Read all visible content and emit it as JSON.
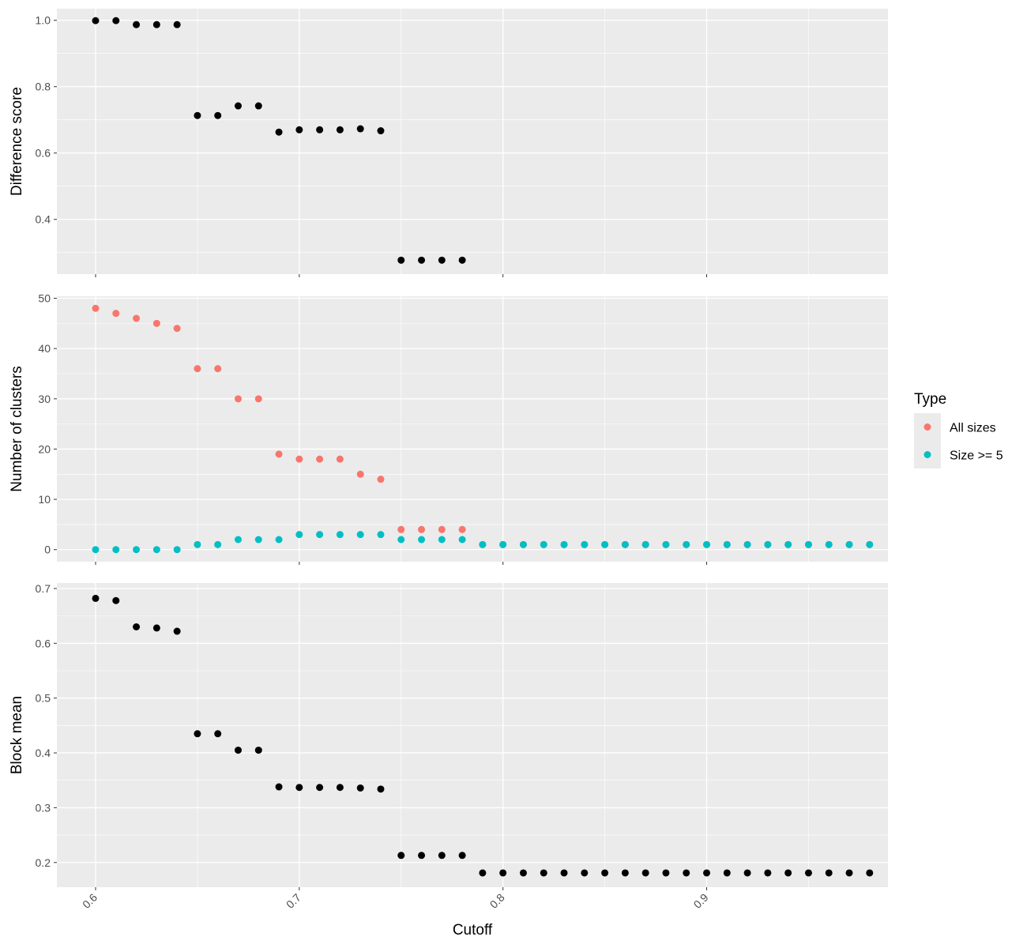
{
  "chart_data": {
    "type": "scatter",
    "xlabel": "Cutoff",
    "xlim": [
      0.581,
      0.989
    ],
    "x_ticks": [
      "0.6",
      "0.7",
      "0.8",
      "0.9"
    ],
    "x_tick_values": [
      0.6,
      0.7,
      0.8,
      0.9
    ],
    "grid": true,
    "legend": {
      "title": "Type",
      "placement": "right",
      "entries": [
        {
          "name": "All sizes",
          "color": "#F8766D"
        },
        {
          "name": "Size >= 5",
          "color": "#00BFC4"
        }
      ]
    },
    "colors": {
      "panel_background": "#EBEBEB",
      "grid_major": "#FFFFFF",
      "point_default": "#000000",
      "tick_label": "#4D4D4D"
    },
    "panels": [
      {
        "ylabel": "Difference score",
        "ylim": [
          0.235,
          1.035
        ],
        "y_ticks": [
          "0.4",
          "0.6",
          "0.8",
          "1.0"
        ],
        "y_tick_values": [
          0.4,
          0.6,
          0.8,
          1.0
        ],
        "series": [
          {
            "x": [
              0.6,
              0.61,
              0.62,
              0.63,
              0.64,
              0.65,
              0.66,
              0.67,
              0.68,
              0.69,
              0.7,
              0.71,
              0.72,
              0.73,
              0.74,
              0.75,
              0.76,
              0.77,
              0.78
            ],
            "values": [
              0.999,
              0.999,
              0.987,
              0.987,
              0.987,
              0.713,
              0.713,
              0.742,
              0.742,
              0.663,
              0.67,
              0.67,
              0.67,
              0.673,
              0.667,
              0.277,
              0.277,
              0.277,
              0.277
            ]
          }
        ]
      },
      {
        "ylabel": "Number of clusters",
        "ylim": [
          -2.4,
          50.4
        ],
        "y_ticks": [
          "0",
          "10",
          "20",
          "30",
          "40",
          "50"
        ],
        "y_tick_values": [
          0,
          10,
          20,
          30,
          40,
          50
        ],
        "series": [
          {
            "name": "All sizes",
            "x": [
              0.6,
              0.61,
              0.62,
              0.63,
              0.64,
              0.65,
              0.66,
              0.67,
              0.68,
              0.69,
              0.7,
              0.71,
              0.72,
              0.73,
              0.74,
              0.75,
              0.76,
              0.77,
              0.78,
              0.79,
              0.8,
              0.81,
              0.82,
              0.83,
              0.84,
              0.85,
              0.86,
              0.87,
              0.88,
              0.89,
              0.9,
              0.91,
              0.92,
              0.93,
              0.94,
              0.95,
              0.96,
              0.97,
              0.98
            ],
            "values": [
              48,
              47,
              46,
              45,
              44,
              36,
              36,
              30,
              30,
              19,
              18,
              18,
              18,
              15,
              14,
              4,
              4,
              4,
              4,
              1,
              1,
              1,
              1,
              1,
              1,
              1,
              1,
              1,
              1,
              1,
              1,
              1,
              1,
              1,
              1,
              1,
              1,
              1,
              1
            ]
          },
          {
            "name": "Size >= 5",
            "x": [
              0.6,
              0.61,
              0.62,
              0.63,
              0.64,
              0.65,
              0.66,
              0.67,
              0.68,
              0.69,
              0.7,
              0.71,
              0.72,
              0.73,
              0.74,
              0.75,
              0.76,
              0.77,
              0.78,
              0.79,
              0.8,
              0.81,
              0.82,
              0.83,
              0.84,
              0.85,
              0.86,
              0.87,
              0.88,
              0.89,
              0.9,
              0.91,
              0.92,
              0.93,
              0.94,
              0.95,
              0.96,
              0.97,
              0.98
            ],
            "values": [
              0,
              0,
              0,
              0,
              0,
              1,
              1,
              2,
              2,
              2,
              3,
              3,
              3,
              3,
              3,
              2,
              2,
              2,
              2,
              1,
              1,
              1,
              1,
              1,
              1,
              1,
              1,
              1,
              1,
              1,
              1,
              1,
              1,
              1,
              1,
              1,
              1,
              1,
              1
            ]
          }
        ]
      },
      {
        "ylabel": "Block mean",
        "ylim": [
          0.155,
          0.71
        ],
        "y_ticks": [
          "0.2",
          "0.3",
          "0.4",
          "0.5",
          "0.6",
          "0.7"
        ],
        "y_tick_values": [
          0.2,
          0.3,
          0.4,
          0.5,
          0.6,
          0.7
        ],
        "series": [
          {
            "x": [
              0.6,
              0.61,
              0.62,
              0.63,
              0.64,
              0.65,
              0.66,
              0.67,
              0.68,
              0.69,
              0.7,
              0.71,
              0.72,
              0.73,
              0.74,
              0.75,
              0.76,
              0.77,
              0.78,
              0.79,
              0.8,
              0.81,
              0.82,
              0.83,
              0.84,
              0.85,
              0.86,
              0.87,
              0.88,
              0.89,
              0.9,
              0.91,
              0.92,
              0.93,
              0.94,
              0.95,
              0.96,
              0.97,
              0.98
            ],
            "values": [
              0.682,
              0.678,
              0.63,
              0.628,
              0.622,
              0.435,
              0.435,
              0.405,
              0.405,
              0.338,
              0.337,
              0.337,
              0.337,
              0.336,
              0.334,
              0.213,
              0.213,
              0.213,
              0.213,
              0.181,
              0.181,
              0.181,
              0.181,
              0.181,
              0.181,
              0.181,
              0.181,
              0.181,
              0.181,
              0.181,
              0.181,
              0.181,
              0.181,
              0.181,
              0.181,
              0.181,
              0.181,
              0.181,
              0.181
            ]
          }
        ]
      }
    ]
  }
}
